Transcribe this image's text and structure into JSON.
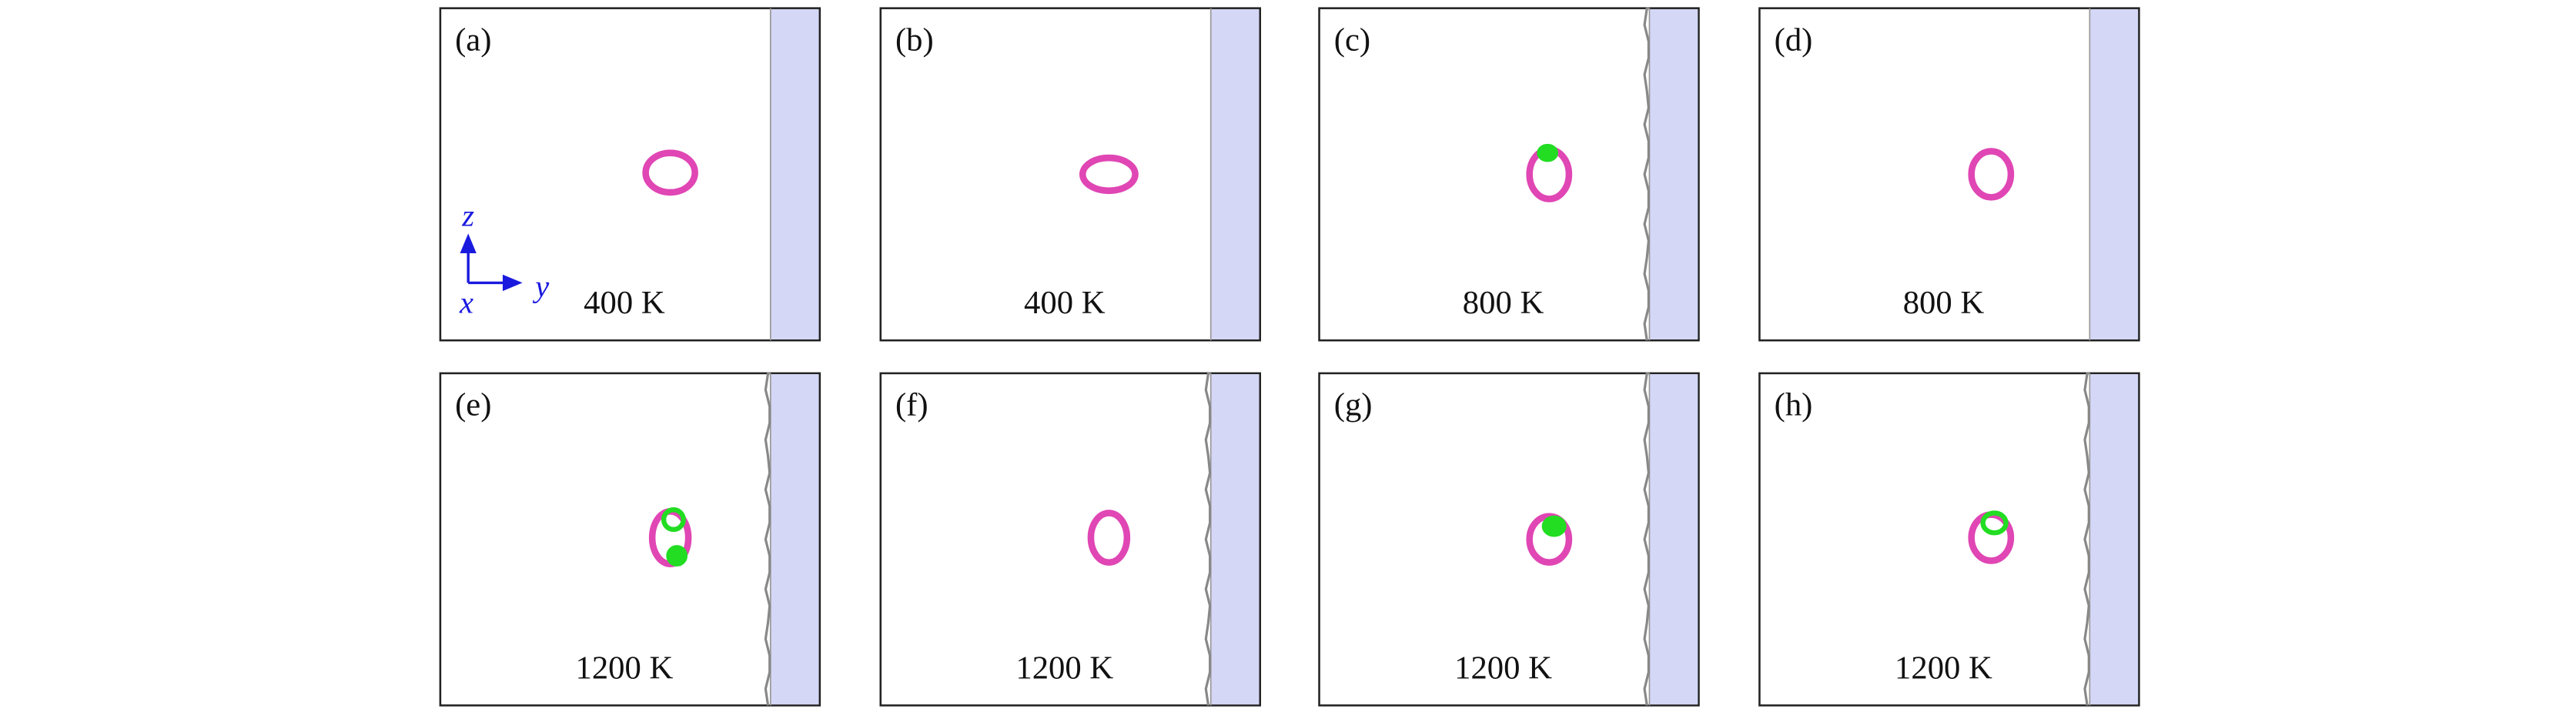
{
  "panels": [
    {
      "label": "(a)",
      "temperature": "400 K"
    },
    {
      "label": "(b)",
      "temperature": "400 K"
    },
    {
      "label": "(c)",
      "temperature": "800 K"
    },
    {
      "label": "(d)",
      "temperature": "800 K"
    },
    {
      "label": "(e)",
      "temperature": "1200 K"
    },
    {
      "label": "(f)",
      "temperature": "1200 K"
    },
    {
      "label": "(g)",
      "temperature": "1200 K"
    },
    {
      "label": "(h)",
      "temperature": "1200 K"
    }
  ],
  "axes": {
    "z": "z",
    "y": "y",
    "x": "x"
  }
}
